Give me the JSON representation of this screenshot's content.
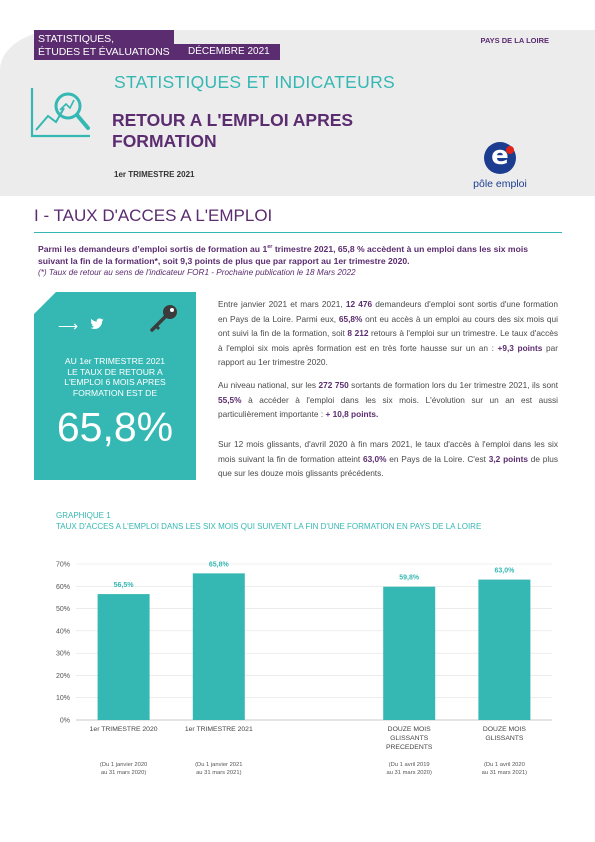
{
  "header": {
    "dept_line1": "STATISTIQUES,",
    "dept_line2": "ÉTUDES ET ÉVALUATIONS",
    "date": "DÉCEMBRE 2021",
    "region": "PAYS DE LA LOIRE",
    "series_title": "STATISTIQUES ET INDICATEURS",
    "title_line1": "RETOUR A L'EMPLOI APRES",
    "title_line2": "FORMATION",
    "quarter": "1er TRIMESTRE 2021",
    "logo_text": "pôle emploi"
  },
  "section": {
    "title": "I - TAUX D'ACCES A L'EMPLOI",
    "intro_a": "Parmi les demandeurs d’emploi sortis de formation au 1",
    "intro_sup": "er",
    "intro_b": " trimestre 2021, 65,8 % accèdent à un emploi dans les six mois suivant la fin de la formation*, soit 9,3 points de plus que par rapport au 1er trimestre 2020.",
    "note": "(*) Taux de retour au sens de l'indicateur FOR1 - Prochaine publication le 18 Mars 2022"
  },
  "highlight_box": {
    "arrow": "⟶",
    "caption_1": "AU 1er TRIMESTRE 2021",
    "caption_2": "LE TAUX DE RETOUR A",
    "caption_3": "L'EMPLOI 6 MOIS APRES",
    "caption_4": "FORMATION EST DE",
    "value": "65,8%"
  },
  "paragraphs": {
    "p1_a": "Entre janvier 2021 et mars 2021,  ",
    "p1_b": "12 476",
    "p1_c": " demandeurs d'emploi sont sortis d'une formation en Pays de la Loire. Parmi eux, ",
    "p1_d": "65,8%",
    "p1_e": " ont eu accès à un emploi au cours des six mois qui ont suivi la fin de la formation, soit ",
    "p1_f": "8 212",
    "p1_g": " retours à l'emploi sur un trimestre. Le taux d'accès à l'emploi six mois après formation est en très forte hausse sur un an : ",
    "p1_h": "+9,3 points",
    "p1_i": " par rapport au 1er trimestre 2020.",
    "p2_a": "Au niveau national, sur les ",
    "p2_b": "272 750",
    "p2_c": " sortants de formation lors du 1er trimestre 2021, ils sont ",
    "p2_d": "55,5%",
    "p2_e": " à accéder à l'emploi dans les six mois. L'évolution sur un an est aussi particulièrement importante :  ",
    "p2_f": "+ 10,8 points.",
    "p3_a": "Sur 12 mois glissants, d'avril 2020 à fin mars 2021,  le taux d'accès à l'emploi dans les six mois suivant la fin de formation atteint ",
    "p3_b": "63,0%",
    "p3_c": " en Pays de la Loire. C'est ",
    "p3_d": "3,2 points",
    "p3_e": " de plus que sur les douze mois glissants précédents."
  },
  "graph": {
    "label": "GRAPHIQUE 1",
    "title": "TAUX D'ACCES A L'EMPLOI DANS LES SIX MOIS QUI SUIVENT LA FIN D'UNE FORMATION EN PAYS DE LA LOIRE"
  },
  "chart_data": {
    "type": "bar",
    "categories": [
      [
        "1er TRIMESTRE 2020"
      ],
      [
        "1er TRIMESTRE 2021"
      ],
      [],
      [
        "DOUZE MOIS",
        "GLISSANTS",
        "PRECEDENTS"
      ],
      [
        "DOUZE MOIS",
        "GLISSANTS"
      ]
    ],
    "sublabels": [
      [
        "(Du 1 janvier 2020",
        "au 31 mars 2020)"
      ],
      [
        "(Du 1 janvier 2021",
        "au 31 mars 2021)"
      ],
      [],
      [
        "(Du 1 avril 2019",
        "au 31 mars 2020)"
      ],
      [
        "(Du 1 avril 2020",
        "au 31 mars 2021)"
      ]
    ],
    "values": [
      56.5,
      65.8,
      null,
      59.8,
      63.0
    ],
    "value_labels": [
      "56,5%",
      "65,8%",
      "",
      "59,8%",
      "63,0%"
    ],
    "yticks": [
      "0%",
      "10%",
      "20%",
      "30%",
      "40%",
      "50%",
      "60%",
      "70%"
    ],
    "ylim": [
      0,
      70
    ],
    "bar_color": "#35b8b3",
    "label_color": "#35b8b3",
    "grid": true
  }
}
